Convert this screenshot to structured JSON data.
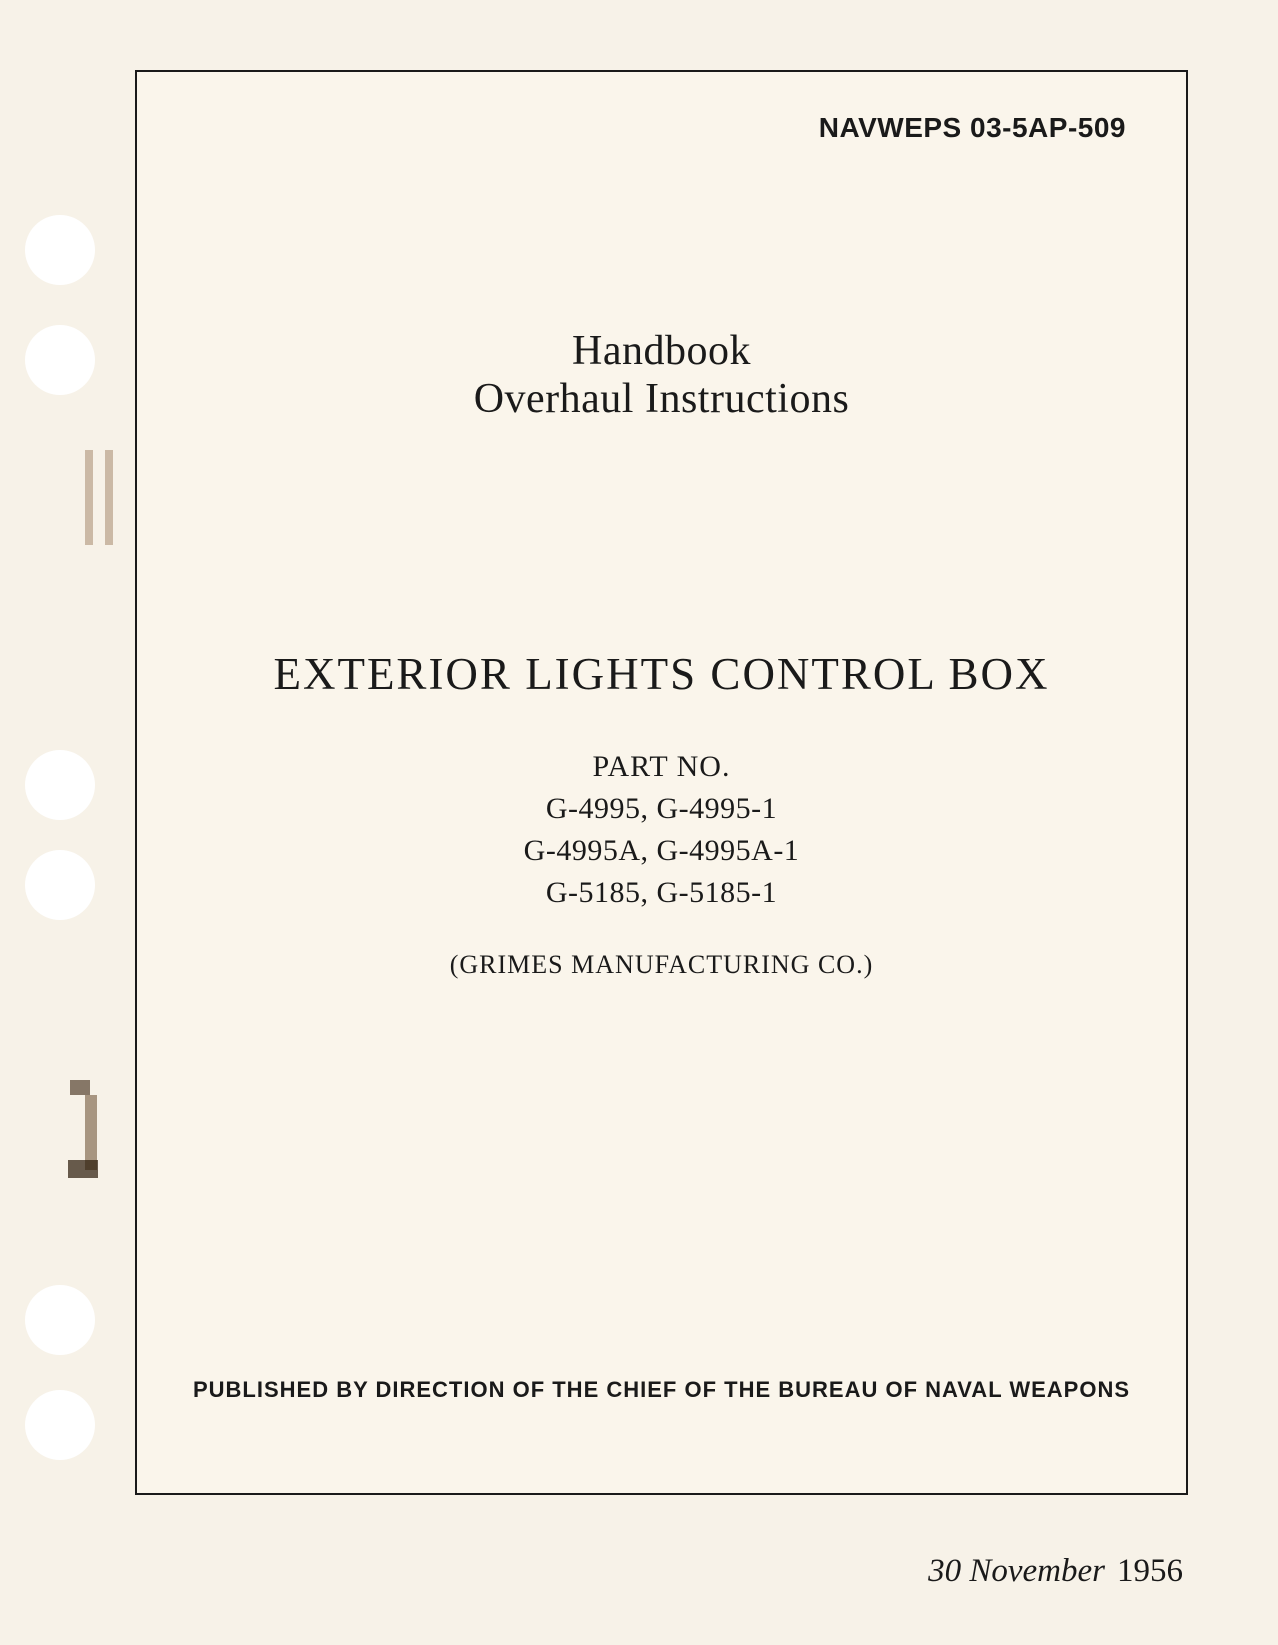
{
  "document": {
    "page_background": "#f7f2e8",
    "frame_border_color": "#1a1a1a",
    "text_color": "#1a1a1a",
    "doc_number": "NAVWEPS 03-5AP-509",
    "heading_line1": "Handbook",
    "heading_line2": "Overhaul Instructions",
    "main_title": "EXTERIOR LIGHTS CONTROL BOX",
    "part_label": "PART NO.",
    "part_lines": [
      "G-4995, G-4995-1",
      "G-4995A, G-4995A-1",
      "G-5185, G-5185-1"
    ],
    "manufacturer": "(GRIMES MANUFACTURING CO.)",
    "publisher": "PUBLISHED BY DIRECTION OF THE CHIEF OF THE BUREAU OF NAVAL WEAPONS",
    "date_text": "30 November",
    "date_year": "1956"
  },
  "typography": {
    "doc_number_fontsize": 28,
    "heading_fontsize": 42,
    "main_title_fontsize": 45,
    "part_label_fontsize": 30,
    "part_line_fontsize": 30,
    "manufacturer_fontsize": 26,
    "publisher_fontsize": 22,
    "date_fontsize": 33
  }
}
